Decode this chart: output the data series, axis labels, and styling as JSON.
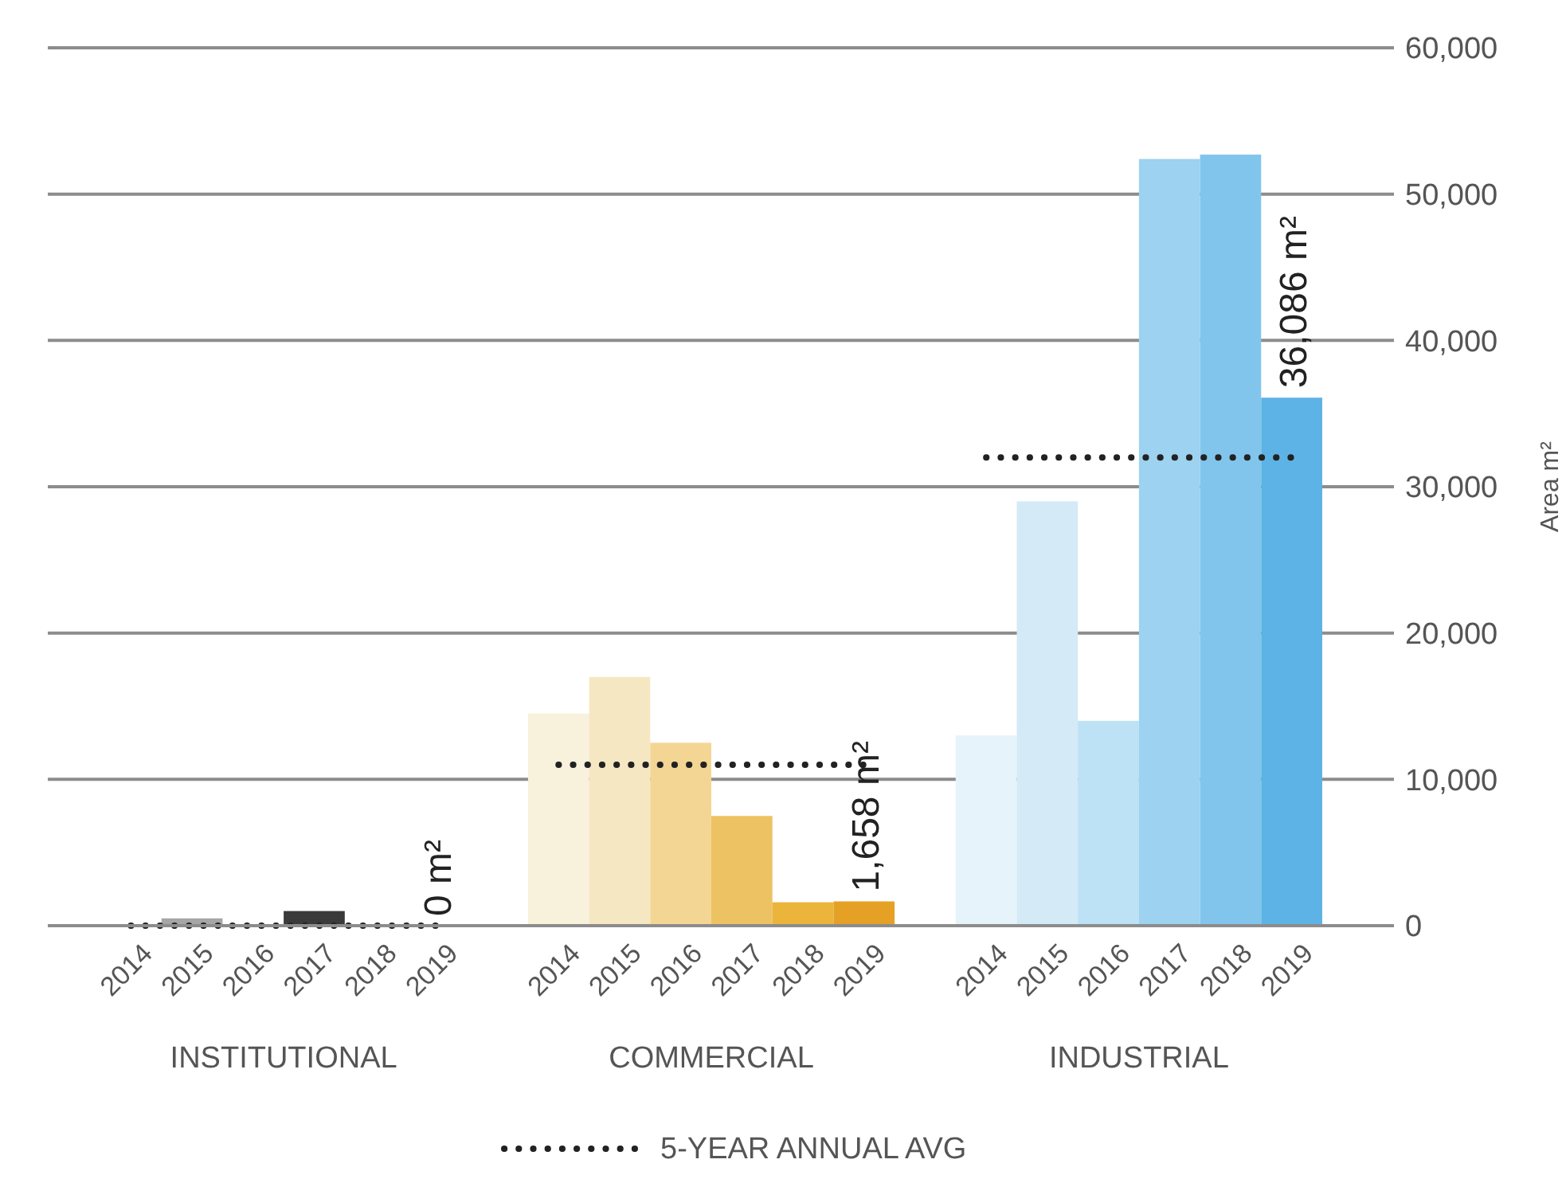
{
  "chart_data": {
    "type": "bar",
    "ylabel": "Area m²",
    "categories": [
      "2014",
      "2015",
      "2016",
      "2017",
      "2018",
      "2019",
      null,
      "2014",
      "2015",
      "2016",
      "2017",
      "2018",
      "2019",
      null,
      "2014",
      "2015",
      "2016",
      "2017",
      "2018",
      "2019"
    ],
    "series": [
      {
        "values": [
          0,
          500,
          0,
          1000,
          0,
          0,
          null,
          14500,
          17000,
          12500,
          7500,
          1600,
          1658,
          null,
          13000,
          29000,
          14000,
          52400,
          52700,
          36086
        ],
        "colors": [
          "#cccccc",
          "#a6a6a6",
          "#777777",
          "#3a3a3a",
          "#2a2a2a",
          "#222222",
          null,
          "#f8f1dc",
          "#f6e7c3",
          "#f4d694",
          "#edc262",
          "#ebb43b",
          "#e5a126",
          null,
          "#e6f3fa",
          "#d4eaf7",
          "#bde1f5",
          "#9dd2f0",
          "#82c5ec",
          "#5db3e5"
        ],
        "value_labels": [
          null,
          null,
          null,
          null,
          null,
          "0 m²",
          null,
          null,
          null,
          null,
          null,
          null,
          "1,658 m²",
          null,
          null,
          null,
          null,
          null,
          null,
          "36,086 m²"
        ]
      },
      {
        "type": "line",
        "name": "5-YEAR ANNUAL AVG",
        "color": "#222222",
        "line_style": "dotted",
        "marker": "none",
        "values": [
          0,
          0,
          0,
          0,
          0,
          0,
          null,
          11000,
          11000,
          11000,
          11000,
          11000,
          11000,
          null,
          32000,
          32000,
          32000,
          32000,
          32000,
          32000
        ]
      }
    ],
    "ylim": [
      0,
      60000
    ],
    "yticks": [
      {
        "value": 0,
        "label": "0"
      },
      {
        "value": 10000,
        "label": "10,000"
      },
      {
        "value": 20000,
        "label": "20,000"
      },
      {
        "value": 30000,
        "label": "30,000"
      },
      {
        "value": 40000,
        "label": "40,000"
      },
      {
        "value": 50000,
        "label": "50,000"
      },
      {
        "value": 60000,
        "label": "60,000"
      }
    ],
    "grid": "y",
    "legend": "bottom",
    "annotations": [
      "INSTITUTIONAL",
      "COMMERCIAL",
      "INDUSTRIAL"
    ]
  }
}
